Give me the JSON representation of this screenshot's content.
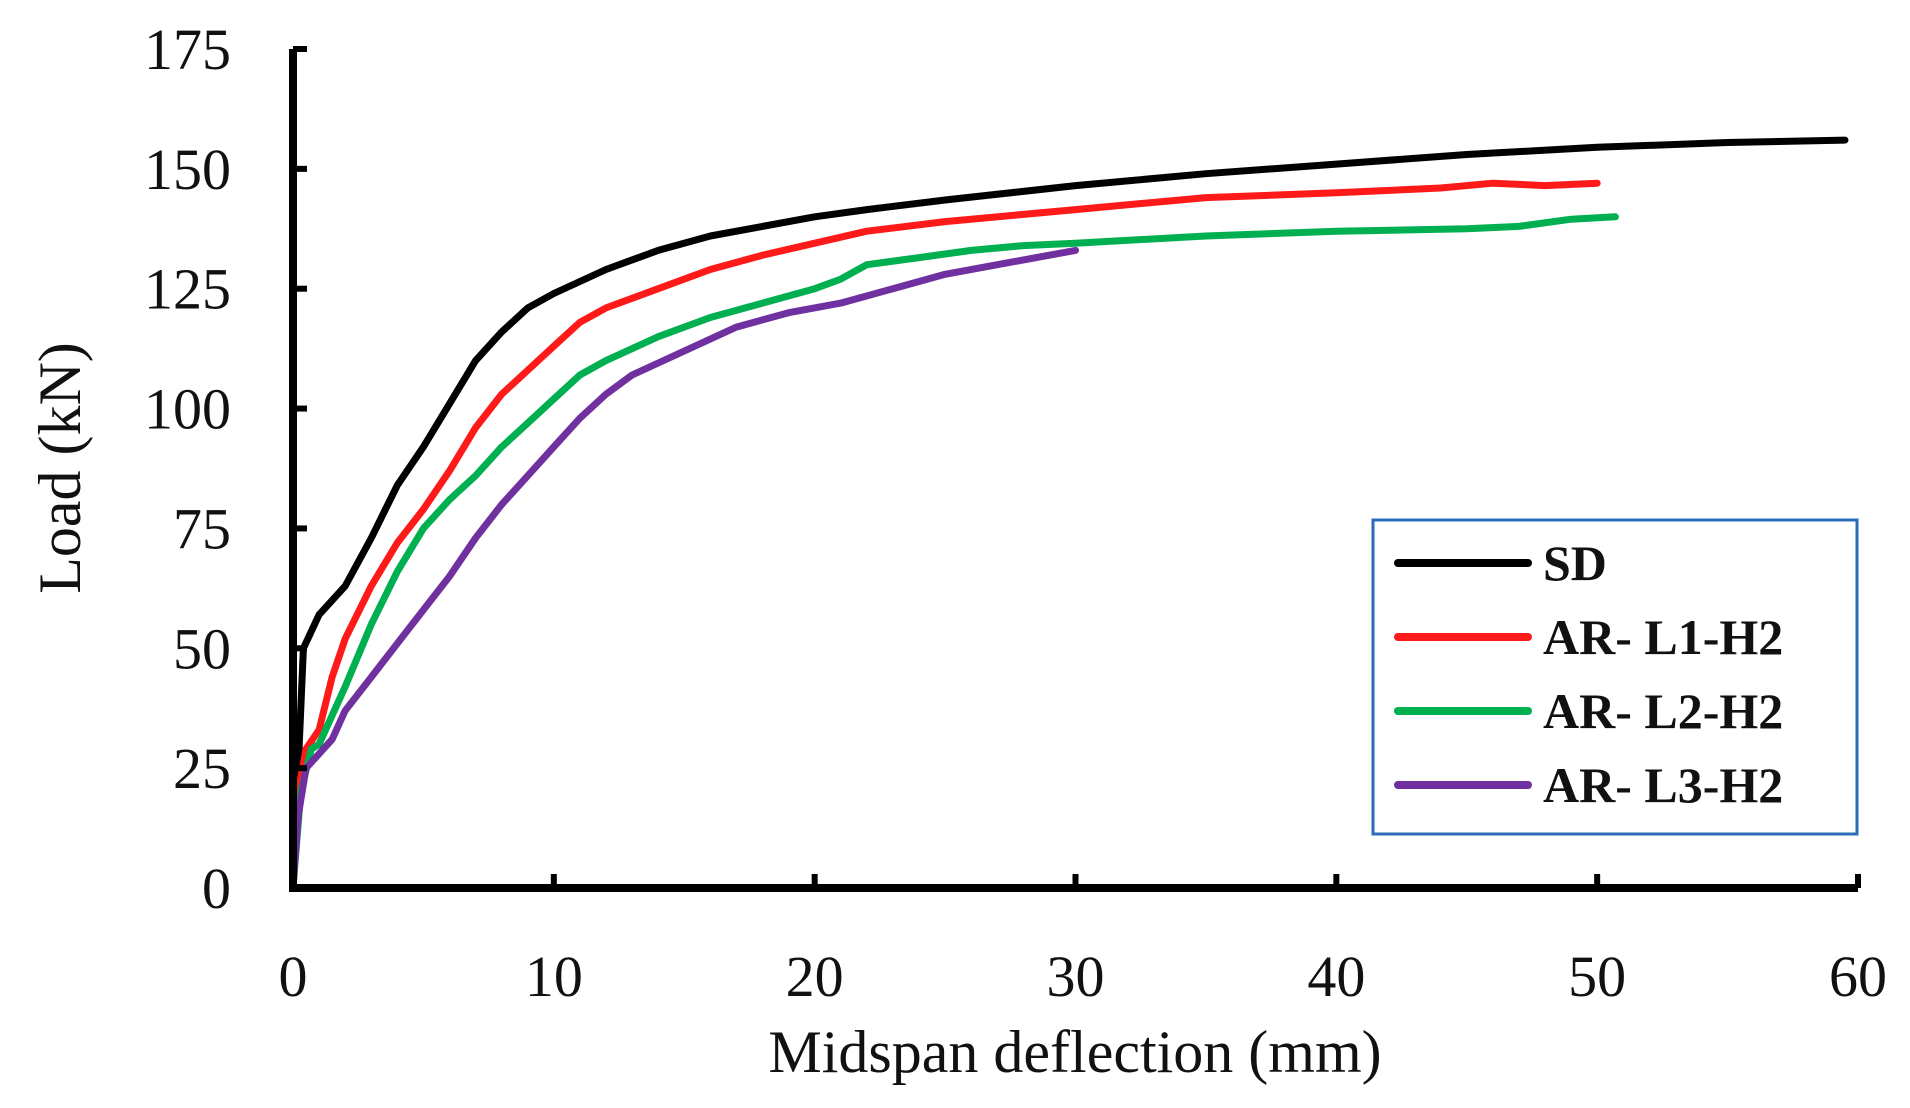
{
  "chart_data": {
    "type": "line",
    "title": "",
    "xlabel": "Midspan deflection (mm)",
    "ylabel": "Load (kN)",
    "xlim": [
      0,
      60
    ],
    "ylim": [
      0,
      175
    ],
    "x_ticks": [
      "0",
      "10",
      "20",
      "30",
      "40",
      "50",
      "60"
    ],
    "y_ticks": [
      "0",
      "25",
      "50",
      "75",
      "100",
      "125",
      "150",
      "175"
    ],
    "grid": false,
    "legend_position": "bottom-right",
    "legend_border_color": "#2b6cb8",
    "axis_color": "#000000",
    "series": [
      {
        "name": "SD",
        "color": "#000000",
        "points": [
          [
            0,
            0
          ],
          [
            0.2,
            25
          ],
          [
            0.4,
            50
          ],
          [
            1,
            57
          ],
          [
            2,
            63
          ],
          [
            3,
            73
          ],
          [
            4,
            84
          ],
          [
            5,
            92
          ],
          [
            6,
            101
          ],
          [
            7,
            110
          ],
          [
            8,
            116
          ],
          [
            9,
            121
          ],
          [
            10,
            124
          ],
          [
            12,
            129
          ],
          [
            14,
            133
          ],
          [
            16,
            136
          ],
          [
            18,
            138
          ],
          [
            20,
            140
          ],
          [
            22,
            141.5
          ],
          [
            25,
            143.5
          ],
          [
            30,
            146.5
          ],
          [
            35,
            149
          ],
          [
            40,
            151
          ],
          [
            45,
            153
          ],
          [
            50,
            154.5
          ],
          [
            55,
            155.5
          ],
          [
            59.5,
            156
          ]
        ]
      },
      {
        "name": "AR- L1-H2",
        "color": "#ff1a1a",
        "points": [
          [
            0,
            0
          ],
          [
            0.2,
            20
          ],
          [
            0.5,
            29
          ],
          [
            1,
            33
          ],
          [
            1.5,
            44
          ],
          [
            2,
            52
          ],
          [
            3,
            63
          ],
          [
            4,
            72
          ],
          [
            5,
            79
          ],
          [
            6,
            87
          ],
          [
            7,
            96
          ],
          [
            8,
            103
          ],
          [
            9,
            108
          ],
          [
            10,
            113
          ],
          [
            11,
            118
          ],
          [
            12,
            121
          ],
          [
            14,
            125
          ],
          [
            16,
            129
          ],
          [
            18,
            132
          ],
          [
            20,
            134.5
          ],
          [
            22,
            137
          ],
          [
            25,
            139
          ],
          [
            30,
            141.5
          ],
          [
            35,
            144
          ],
          [
            40,
            145
          ],
          [
            44,
            146
          ],
          [
            46,
            147
          ],
          [
            48,
            146.5
          ],
          [
            50,
            147
          ]
        ]
      },
      {
        "name": "AR- L2-H2",
        "color": "#00b050",
        "points": [
          [
            0,
            0
          ],
          [
            0.3,
            20
          ],
          [
            0.7,
            29
          ],
          [
            1,
            30
          ],
          [
            2,
            42
          ],
          [
            3,
            55
          ],
          [
            4,
            66
          ],
          [
            5,
            75
          ],
          [
            6,
            81
          ],
          [
            7,
            86
          ],
          [
            8,
            92
          ],
          [
            9,
            97
          ],
          [
            10,
            102
          ],
          [
            11,
            107
          ],
          [
            12,
            110
          ],
          [
            14,
            115
          ],
          [
            16,
            119
          ],
          [
            18,
            122
          ],
          [
            20,
            125
          ],
          [
            21,
            127
          ],
          [
            22,
            130
          ],
          [
            24,
            131.5
          ],
          [
            26,
            133
          ],
          [
            28,
            134
          ],
          [
            30,
            134.5
          ],
          [
            35,
            136
          ],
          [
            40,
            137
          ],
          [
            45,
            137.5
          ],
          [
            47,
            138
          ],
          [
            49,
            139.5
          ],
          [
            50.7,
            140
          ]
        ]
      },
      {
        "name": "AR- L3-H2",
        "color": "#7030a0",
        "points": [
          [
            0,
            0
          ],
          [
            0.2,
            15
          ],
          [
            0.5,
            25
          ],
          [
            1,
            28
          ],
          [
            1.5,
            31
          ],
          [
            2,
            37
          ],
          [
            3,
            44
          ],
          [
            4,
            51
          ],
          [
            5,
            58
          ],
          [
            6,
            65
          ],
          [
            7,
            73
          ],
          [
            8,
            80
          ],
          [
            9,
            86
          ],
          [
            10,
            92
          ],
          [
            11,
            98
          ],
          [
            12,
            103
          ],
          [
            13,
            107
          ],
          [
            15,
            112
          ],
          [
            17,
            117
          ],
          [
            19,
            120
          ],
          [
            21,
            122
          ],
          [
            23,
            125
          ],
          [
            25,
            128
          ],
          [
            27,
            130
          ],
          [
            30,
            133
          ]
        ]
      }
    ]
  }
}
